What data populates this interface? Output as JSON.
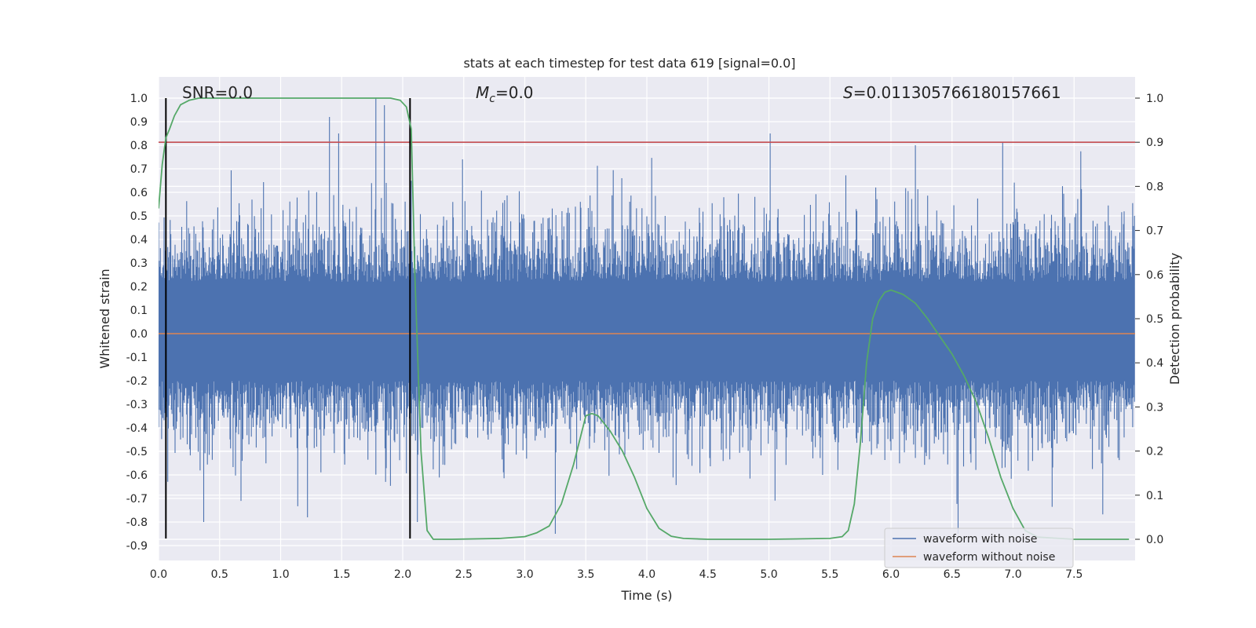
{
  "chart_data": {
    "type": "line",
    "title": "stats at each timestep for test data 619 [signal=0.0]",
    "xlabel": "Time (s)",
    "ylabel": "Whitened strain",
    "y2label": "Detection probability",
    "xlim": [
      0.0,
      8.0
    ],
    "ylim": [
      -1.0,
      1.1
    ],
    "y2lim": [
      -0.045,
      1.045
    ],
    "grid": true,
    "legend_position": "lower-right",
    "xticks": [
      "0.0",
      "0.5",
      "1.0",
      "1.5",
      "2.0",
      "2.5",
      "3.0",
      "3.5",
      "4.0",
      "4.5",
      "5.0",
      "5.5",
      "6.0",
      "6.5",
      "7.0",
      "7.5"
    ],
    "yticks": [
      "1.0",
      "0.9",
      "0.8",
      "0.7",
      "0.6",
      "0.5",
      "0.4",
      "0.3",
      "0.2",
      "0.1",
      "0.0",
      "-0.1",
      "-0.2",
      "-0.3",
      "-0.4",
      "-0.5",
      "-0.6",
      "-0.7",
      "-0.8",
      "-0.9"
    ],
    "y2ticks": [
      "1.0",
      "0.9",
      "0.8",
      "0.7",
      "0.6",
      "0.5",
      "0.4",
      "0.3",
      "0.2",
      "0.1",
      "0.0"
    ],
    "annotations": {
      "snr": "SNR=0.0",
      "mc_symbol": "M",
      "mc_sub": "c",
      "mc_value": "=0.0",
      "s_symbol": "S",
      "s_value": "=0.011305766180157661"
    },
    "series": [
      {
        "name": "waveform with noise",
        "color": "#4c72b0",
        "style": "noise band",
        "approx_envelope": {
          "typical_max": 0.45,
          "typical_min": -0.45,
          "peaks": [
            {
              "x": 1.4,
              "y": 0.92
            },
            {
              "x": 1.78,
              "y": 1.0
            },
            {
              "x": 1.85,
              "y": 0.97
            },
            {
              "x": 0.37,
              "y": -0.8
            },
            {
              "x": 1.22,
              "y": -0.78
            },
            {
              "x": 6.2,
              "y": 0.8
            },
            {
              "x": 6.55,
              "y": -0.85
            },
            {
              "x": 3.25,
              "y": -0.85
            },
            {
              "x": 2.12,
              "y": -0.8
            }
          ]
        }
      },
      {
        "name": "waveform without noise",
        "color": "#dd8452",
        "x": [
          0.0,
          8.0
        ],
        "y": [
          0.0,
          0.0
        ]
      },
      {
        "color": "#55a868",
        "axis": "right",
        "x": [
          0.0,
          0.03,
          0.06,
          0.09,
          0.13,
          0.18,
          0.25,
          0.33,
          0.5,
          1.0,
          1.5,
          1.9,
          1.98,
          2.03,
          2.07,
          2.1,
          2.15,
          2.2,
          2.25,
          2.4,
          2.8,
          3.0,
          3.1,
          3.2,
          3.3,
          3.4,
          3.5,
          3.55,
          3.6,
          3.7,
          3.8,
          3.9,
          4.0,
          4.1,
          4.2,
          4.3,
          4.5,
          5.0,
          5.5,
          5.6,
          5.65,
          5.7,
          5.75,
          5.8,
          5.85,
          5.9,
          5.95,
          6.0,
          6.1,
          6.2,
          6.3,
          6.4,
          6.5,
          6.6,
          6.7,
          6.8,
          6.9,
          7.0,
          7.1,
          7.2,
          7.5,
          7.95
        ],
        "y": [
          0.75,
          0.85,
          0.91,
          0.93,
          0.96,
          0.985,
          0.995,
          1.0,
          1.0,
          1.0,
          1.0,
          1.0,
          0.995,
          0.98,
          0.93,
          0.6,
          0.2,
          0.02,
          0.0,
          0.0,
          0.002,
          0.006,
          0.015,
          0.03,
          0.08,
          0.17,
          0.28,
          0.285,
          0.28,
          0.245,
          0.2,
          0.14,
          0.07,
          0.025,
          0.007,
          0.002,
          0.0,
          0.0,
          0.002,
          0.006,
          0.02,
          0.08,
          0.22,
          0.4,
          0.5,
          0.54,
          0.56,
          0.565,
          0.555,
          0.535,
          0.5,
          0.46,
          0.42,
          0.37,
          0.31,
          0.23,
          0.14,
          0.07,
          0.02,
          0.005,
          0.0,
          0.0
        ]
      },
      {
        "color": "#c44e52",
        "axis": "right",
        "x": [
          0.0,
          8.0
        ],
        "y": [
          0.9,
          0.9
        ]
      }
    ],
    "vertical_markers": {
      "color": "#000000",
      "x": [
        0.06,
        2.06
      ],
      "y_range": [
        -0.87,
        1.0
      ]
    }
  }
}
